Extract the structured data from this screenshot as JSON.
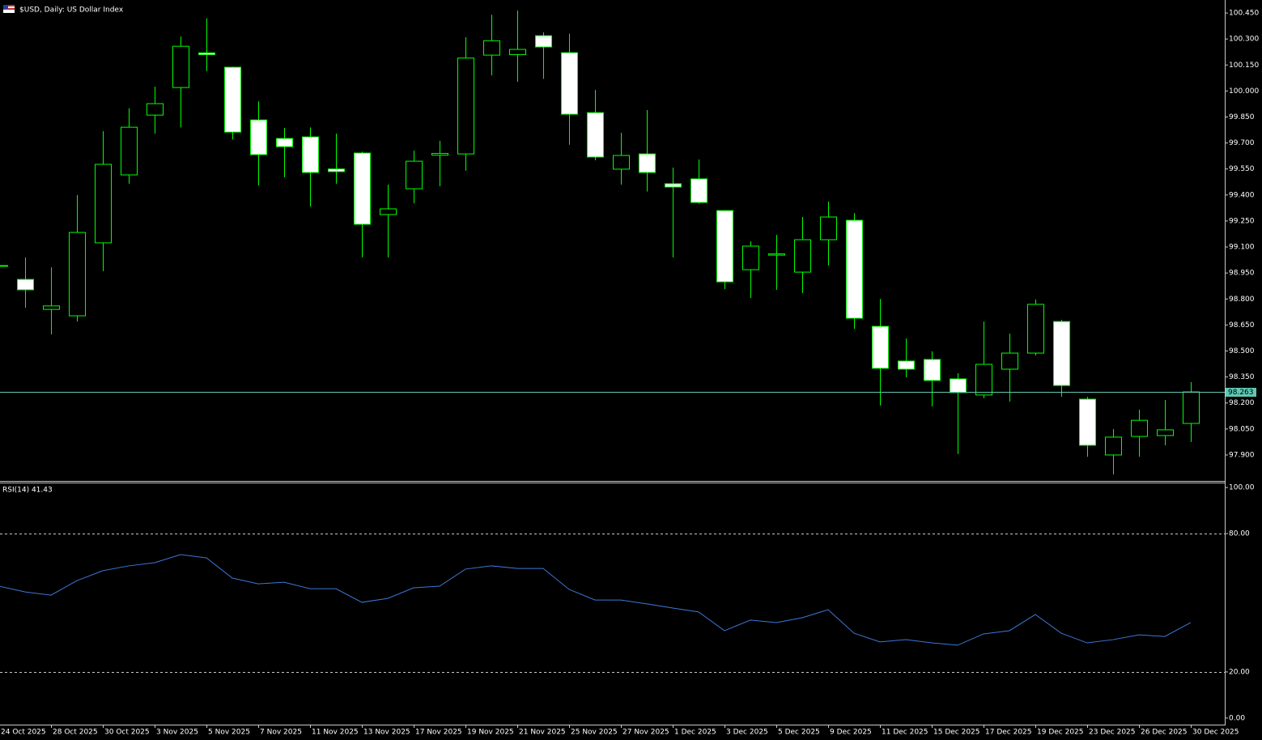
{
  "chart_data": [
    {
      "type": "candlestick",
      "title": "$USD, Daily:  US Dollar Index",
      "categories": [
        "24 Oct 2025",
        null,
        "28 Oct 2025",
        null,
        "30 Oct 2025",
        null,
        "3 Nov 2025",
        null,
        "5 Nov 2025",
        null,
        "7 Nov 2025",
        null,
        "11 Nov 2025",
        null,
        "13 Nov 2025",
        null,
        "17 Nov 2025",
        null,
        "19 Nov 2025",
        null,
        "21 Nov 2025",
        null,
        "25 Nov 2025",
        null,
        "27 Nov 2025",
        null,
        "1 Dec 2025",
        null,
        "3 Dec 2025",
        null,
        "5 Dec 2025",
        null,
        "9 Dec 2025",
        null,
        "11 Dec 2025",
        null,
        "15 Dec 2025",
        null,
        "17 Dec 2025",
        null,
        "19 Dec 2025",
        null,
        "23 Dec 2025",
        null,
        "26 Dec 2025",
        null,
        "30 Dec 2025"
      ],
      "open": [
        98.99,
        98.913,
        98.74,
        98.703,
        99.124,
        99.516,
        99.861,
        100.02,
        100.22,
        100.137,
        99.833,
        99.726,
        99.735,
        99.55,
        99.642,
        99.287,
        99.436,
        99.63,
        99.637,
        100.207,
        100.21,
        100.319,
        100.221,
        99.875,
        99.549,
        99.637,
        99.465,
        99.493,
        99.31,
        98.969,
        99.053,
        98.955,
        99.142,
        99.254,
        98.642,
        98.442,
        98.451,
        98.339,
        98.246,
        98.395,
        98.488,
        98.67,
        98.222,
        97.9,
        98.007,
        98.012,
        98.082
      ],
      "high": [
        99.02,
        99.04,
        98.983,
        99.4,
        99.768,
        99.9,
        100.025,
        100.315,
        100.42,
        100.14,
        99.94,
        99.787,
        99.79,
        99.754,
        99.65,
        99.46,
        99.656,
        99.712,
        100.31,
        100.44,
        100.464,
        100.338,
        100.33,
        100.006,
        99.759,
        99.89,
        99.558,
        99.605,
        99.31,
        99.133,
        99.17,
        99.273,
        99.362,
        99.296,
        98.8,
        98.572,
        98.498,
        98.372,
        98.67,
        98.6,
        98.797,
        98.68,
        98.236,
        98.05,
        98.161,
        98.217,
        98.32
      ],
      "low": [
        98.95,
        98.75,
        98.596,
        98.67,
        98.96,
        99.465,
        99.754,
        99.79,
        100.114,
        99.72,
        99.455,
        99.502,
        99.334,
        99.465,
        99.04,
        99.04,
        99.352,
        99.45,
        99.54,
        100.09,
        100.053,
        100.07,
        99.69,
        99.6,
        99.46,
        99.42,
        99.04,
        99.35,
        98.857,
        98.806,
        98.853,
        98.834,
        98.993,
        98.628,
        98.185,
        98.348,
        98.18,
        97.905,
        98.227,
        98.208,
        98.474,
        98.236,
        97.89,
        97.788,
        97.89,
        97.956,
        97.975
      ],
      "close": [
        98.993,
        98.853,
        98.76,
        99.184,
        99.577,
        99.791,
        99.927,
        100.258,
        100.21,
        99.763,
        99.633,
        99.679,
        99.53,
        99.535,
        99.231,
        99.32,
        99.595,
        99.64,
        100.19,
        100.29,
        100.24,
        100.254,
        99.866,
        99.619,
        99.628,
        99.53,
        99.446,
        99.357,
        98.899,
        99.105,
        99.06,
        99.142,
        99.273,
        98.689,
        98.4,
        98.395,
        98.33,
        98.26,
        98.423,
        98.488,
        98.769,
        98.301,
        97.956,
        98.003,
        98.1,
        98.045,
        98.264
      ],
      "up_color": "#000000",
      "down_color": "#ffffff",
      "wick_color": "#00ff00",
      "current_price": 98.263,
      "current_price_color": "#5fc8b4",
      "ylim": [
        97.755,
        100.525
      ],
      "yticks": [
        {
          "value": 100.45,
          "label": "100.450"
        },
        {
          "value": 100.3,
          "label": "100.300"
        },
        {
          "value": 100.15,
          "label": "100.150"
        },
        {
          "value": 100,
          "label": "100.000"
        },
        {
          "value": 99.85,
          "label": "99.850"
        },
        {
          "value": 99.7,
          "label": "99.700"
        },
        {
          "value": 99.55,
          "label": "99.550"
        },
        {
          "value": 99.4,
          "label": "99.400"
        },
        {
          "value": 99.25,
          "label": "99.250"
        },
        {
          "value": 99.1,
          "label": "99.100"
        },
        {
          "value": 98.95,
          "label": "98.950"
        },
        {
          "value": 98.8,
          "label": "98.800"
        },
        {
          "value": 98.65,
          "label": "98.650"
        },
        {
          "value": 98.5,
          "label": "98.500"
        },
        {
          "value": 98.35,
          "label": "98.350"
        },
        {
          "value": 98.2,
          "label": "98.200"
        },
        {
          "value": 98.05,
          "label": "98.050"
        },
        {
          "value": 97.9,
          "label": "97.900"
        }
      ]
    },
    {
      "type": "line",
      "title": "RSI(14) 41.43",
      "values": [
        57.2,
        54.7,
        53.3,
        59.6,
        63.9,
        66,
        67.4,
        70.9,
        69.5,
        60.7,
        58.2,
        58.9,
        56.1,
        56.1,
        50.2,
        51.9,
        56.5,
        57.2,
        64.6,
        66,
        64.9,
        64.9,
        55.8,
        51.2,
        51.2,
        49.5,
        47.7,
        46,
        37.9,
        42.5,
        41.4,
        43.5,
        47,
        36.8,
        33,
        34,
        32.6,
        31.6,
        36.5,
        37.9,
        44.9,
        36.8,
        32.6,
        34,
        36.1,
        35.4,
        41.43
      ],
      "color": "#3c78d8",
      "ylim": [
        -2.5,
        101.8
      ],
      "yticks": [
        {
          "value": 100,
          "label": "100.00"
        },
        {
          "value": 80,
          "label": "80.00"
        },
        {
          "value": 20,
          "label": "20.00"
        },
        {
          "value": 0,
          "label": "0.00"
        }
      ],
      "levels": [
        80,
        20
      ]
    }
  ]
}
